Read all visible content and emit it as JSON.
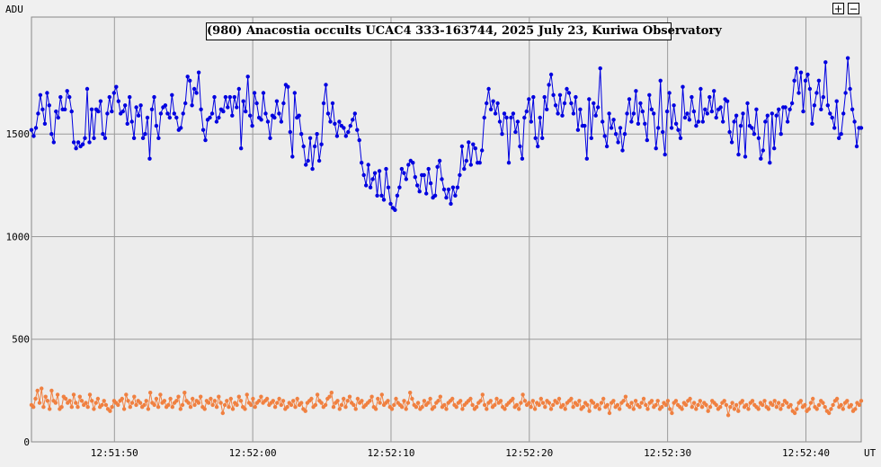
{
  "toolbar": {
    "zoom_in_label": "+",
    "zoom_out_label": "−"
  },
  "chart_data": {
    "type": "line",
    "title": "(980) Anacostia occults UCAC4 333-163744, 2025 July 23, Kuriwa Observatory",
    "ylabel": "ADU",
    "xlabel": "UT",
    "ylim": [
      0,
      2070
    ],
    "xlim_seconds_after_12_51_44": [
      0,
      60
    ],
    "x_tick_labels": [
      "12:51:50",
      "12:52:00",
      "12:52:10",
      "12:52:20",
      "12:52:30",
      "12:52:40"
    ],
    "x_tick_values": [
      6,
      16,
      26,
      36,
      46,
      56
    ],
    "y_tick_values": [
      0,
      500,
      1000,
      1500
    ],
    "grid": true,
    "legend": "none",
    "series": [
      {
        "color": "#0000e0",
        "values": [
          1520,
          1490,
          1530,
          1600,
          1690,
          1620,
          1550,
          1700,
          1640,
          1500,
          1460,
          1610,
          1580,
          1680,
          1620,
          1620,
          1710,
          1680,
          1610,
          1460,
          1430,
          1460,
          1440,
          1450,
          1480,
          1720,
          1460,
          1620,
          1480,
          1620,
          1610,
          1660,
          1500,
          1480,
          1600,
          1680,
          1610,
          1700,
          1730,
          1660,
          1600,
          1610,
          1640,
          1550,
          1680,
          1560,
          1480,
          1630,
          1590,
          1640,
          1480,
          1500,
          1580,
          1380,
          1620,
          1680,
          1540,
          1480,
          1600,
          1630,
          1640,
          1600,
          1580,
          1690,
          1600,
          1580,
          1520,
          1530,
          1600,
          1650,
          1780,
          1760,
          1640,
          1720,
          1700,
          1800,
          1620,
          1520,
          1470,
          1570,
          1580,
          1600,
          1680,
          1560,
          1580,
          1620,
          1610,
          1680,
          1630,
          1680,
          1590,
          1680,
          1630,
          1720,
          1430,
          1660,
          1610,
          1780,
          1590,
          1540,
          1700,
          1650,
          1580,
          1570,
          1700,
          1600,
          1560,
          1480,
          1590,
          1580,
          1660,
          1600,
          1560,
          1650,
          1740,
          1730,
          1510,
          1390,
          1700,
          1580,
          1590,
          1500,
          1440,
          1350,
          1370,
          1480,
          1330,
          1440,
          1500,
          1370,
          1450,
          1650,
          1740,
          1600,
          1560,
          1650,
          1550,
          1490,
          1560,
          1540,
          1530,
          1490,
          1510,
          1540,
          1570,
          1600,
          1520,
          1470,
          1360,
          1300,
          1250,
          1350,
          1240,
          1280,
          1310,
          1200,
          1320,
          1200,
          1180,
          1330,
          1240,
          1160,
          1140,
          1130,
          1200,
          1240,
          1330,
          1310,
          1280,
          1350,
          1370,
          1360,
          1290,
          1250,
          1220,
          1300,
          1300,
          1210,
          1330,
          1260,
          1190,
          1200,
          1340,
          1370,
          1280,
          1230,
          1190,
          1230,
          1160,
          1240,
          1200,
          1240,
          1300,
          1440,
          1330,
          1370,
          1460,
          1350,
          1450,
          1430,
          1360,
          1360,
          1420,
          1580,
          1650,
          1720,
          1620,
          1660,
          1600,
          1650,
          1560,
          1500,
          1600,
          1580,
          1360,
          1580,
          1600,
          1510,
          1560,
          1440,
          1380,
          1580,
          1610,
          1670,
          1560,
          1680,
          1480,
          1440,
          1580,
          1480,
          1680,
          1620,
          1740,
          1790,
          1690,
          1640,
          1600,
          1690,
          1590,
          1650,
          1720,
          1700,
          1650,
          1600,
          1680,
          1520,
          1620,
          1540,
          1540,
          1380,
          1670,
          1480,
          1650,
          1590,
          1630,
          1820,
          1560,
          1490,
          1440,
          1600,
          1530,
          1570,
          1500,
          1460,
          1530,
          1420,
          1500,
          1600,
          1670,
          1560,
          1600,
          1710,
          1550,
          1650,
          1610,
          1550,
          1470,
          1690,
          1620,
          1600,
          1430,
          1530,
          1760,
          1510,
          1400,
          1610,
          1700,
          1530,
          1640,
          1550,
          1520,
          1480,
          1730,
          1580,
          1600,
          1570,
          1680,
          1610,
          1540,
          1560,
          1720,
          1560,
          1620,
          1600,
          1680,
          1610,
          1710,
          1580,
          1620,
          1630,
          1560,
          1670,
          1660,
          1510,
          1460,
          1560,
          1590,
          1400,
          1540,
          1600,
          1390,
          1650,
          1540,
          1530,
          1500,
          1620,
          1480,
          1380,
          1420,
          1560,
          1590,
          1360,
          1600,
          1430,
          1590,
          1620,
          1500,
          1630,
          1630,
          1560,
          1620,
          1650,
          1760,
          1820,
          1700,
          1800,
          1610,
          1760,
          1790,
          1720,
          1550,
          1640,
          1700,
          1760,
          1620,
          1680,
          1850,
          1640,
          1600,
          1580,
          1530,
          1660,
          1480,
          1500,
          1600,
          1700,
          1870,
          1720,
          1620,
          1560,
          1440,
          1530,
          1530
        ]
      },
      {
        "color": "#f08040",
        "values": [
          180,
          170,
          210,
          250,
          190,
          260,
          170,
          220,
          200,
          160,
          250,
          200,
          190,
          230,
          160,
          170,
          220,
          210,
          190,
          200,
          170,
          230,
          190,
          170,
          220,
          200,
          180,
          190,
          170,
          230,
          200,
          160,
          190,
          210,
          170,
          180,
          200,
          180,
          160,
          150,
          170,
          200,
          190,
          180,
          200,
          210,
          160,
          230,
          200,
          170,
          190,
          220,
          180,
          200,
          190,
          170,
          180,
          200,
          160,
          240,
          190,
          180,
          210,
          170,
          230,
          190,
          200,
          170,
          180,
          210,
          170,
          190,
          200,
          220,
          160,
          180,
          240,
          200,
          190,
          170,
          210,
          180,
          200,
          190,
          220,
          170,
          160,
          200,
          190,
          210,
          180,
          200,
          170,
          220,
          190,
          140,
          180,
          200,
          170,
          210,
          160,
          190,
          180,
          220,
          200,
          170,
          160,
          230,
          190,
          180,
          210,
          170,
          190,
          200,
          220,
          190,
          200,
          210,
          180,
          190,
          200,
          170,
          190,
          210,
          180,
          200,
          160,
          170,
          190,
          180,
          200,
          170,
          210,
          180,
          190,
          160,
          150,
          190,
          200,
          210,
          170,
          180,
          230,
          200,
          190,
          170,
          180,
          210,
          220,
          240,
          170,
          190,
          200,
          160,
          180,
          210,
          170,
          200,
          220,
          190,
          180,
          160,
          210,
          190,
          200,
          170,
          180,
          190,
          200,
          220,
          170,
          160,
          210,
          190,
          230,
          180,
          190,
          200,
          170,
          160,
          180,
          210,
          190,
          180,
          170,
          200,
          160,
          190,
          240,
          210,
          180,
          170,
          190,
          160,
          170,
          200,
          180,
          190,
          210,
          160,
          170,
          190,
          200,
          220,
          170,
          180,
          160,
          190,
          200,
          210,
          180,
          170,
          190,
          200,
          160,
          180,
          190,
          200,
          210,
          180,
          160,
          170,
          190,
          200,
          230,
          180,
          160,
          190,
          200,
          170,
          180,
          210,
          190,
          200,
          170,
          160,
          180,
          190,
          200,
          210,
          170,
          180,
          160,
          190,
          230,
          200,
          180,
          190,
          170,
          200,
          160,
          190,
          180,
          210,
          190,
          170,
          200,
          190,
          160,
          180,
          200,
          190,
          210,
          170,
          180,
          160,
          190,
          200,
          210,
          170,
          190,
          180,
          200,
          160,
          170,
          190,
          180,
          150,
          200,
          190,
          170,
          180,
          160,
          190,
          210,
          170,
          180,
          140,
          190,
          200,
          170,
          180,
          160,
          190,
          200,
          220,
          180,
          170,
          190,
          160,
          200,
          180,
          170,
          190,
          210,
          180,
          160,
          190,
          200,
          170,
          180,
          200,
          160,
          170,
          190,
          180,
          200,
          160,
          140,
          190,
          200,
          180,
          170,
          160,
          190,
          180,
          200,
          210,
          170,
          190,
          160,
          180,
          200,
          170,
          190,
          180,
          150,
          170,
          200,
          190,
          180,
          160,
          170,
          190,
          200,
          180,
          130,
          170,
          190,
          160,
          180,
          150,
          190,
          200,
          170,
          180,
          160,
          190,
          200,
          180,
          170,
          160,
          190,
          180,
          200,
          170,
          160,
          190,
          180,
          200,
          170,
          190,
          160,
          180,
          200,
          190,
          170,
          180,
          150,
          140,
          160,
          190,
          200,
          170,
          180,
          150,
          160,
          190,
          210,
          170,
          160,
          180,
          200,
          190,
          170,
          150,
          140,
          160,
          180,
          200,
          210,
          170,
          180,
          160,
          190,
          200,
          170,
          180,
          150,
          160,
          190,
          180,
          200
        ]
      }
    ]
  }
}
